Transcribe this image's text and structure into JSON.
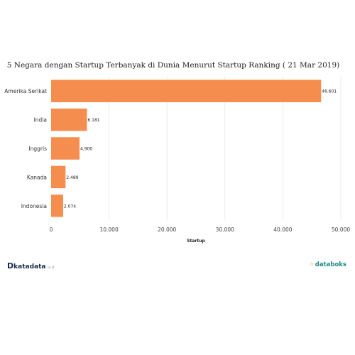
{
  "chart_data": {
    "type": "bar",
    "orientation": "horizontal",
    "title": "5 Negara dengan Startup Terbanyak di Dunia Menurut Startup Ranking ( 21 Mar 2019)",
    "xlabel": "Startup",
    "ylabel": "",
    "categories": [
      "Amerika Serikat",
      "India",
      "Inggris",
      "Kanada",
      "Indonesia"
    ],
    "values": [
      46601,
      6181,
      4900,
      2489,
      2074
    ],
    "data_labels": [
      "46.601",
      "6.181",
      "4.900",
      "2.489",
      "2.074"
    ],
    "xlim": [
      0,
      50000
    ],
    "ticks": [
      0,
      10000,
      20000,
      30000,
      40000,
      50000
    ],
    "tick_labels": [
      "0",
      "10.000",
      "20.000",
      "30.000",
      "40.000",
      "50.000"
    ],
    "bar_color": "#f58d4f",
    "grid": true,
    "legend": "none"
  },
  "branding": {
    "left_mark": "D",
    "left_name": "katadata",
    "left_suffix": ".co.id",
    "right_mark": "⁘",
    "right_name": "databoks",
    "left_color": "#1b2a4a",
    "right_color": "#1f8a8a",
    "accent_color": "#e8562a"
  }
}
